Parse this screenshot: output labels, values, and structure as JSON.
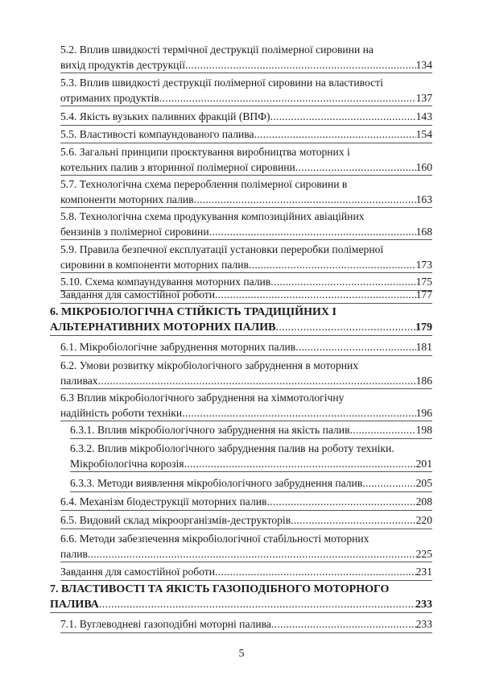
{
  "toc": [
    {
      "level": 2,
      "lines": [
        "5.2. Вплив швидкості термічної деструкції полімерної сировини на",
        "вихід продуктів деструкції"
      ],
      "page": "134"
    },
    {
      "level": 2,
      "lines": [
        "5.3. Вплив швидкості деструкції полімерної сировини на властивості",
        "отриманих продуктів"
      ],
      "page": "137"
    },
    {
      "level": 2,
      "lines": [
        "5.4. Якість вузьких паливних фракцій (ВПФ)"
      ],
      "page": "143"
    },
    {
      "level": 2,
      "lines": [
        "5.5. Властивості компаундованого палива"
      ],
      "page": "154"
    },
    {
      "level": 2,
      "lines": [
        "5.6. Загальні принципи проєктування виробництва моторних і",
        "котельних палив з вторинної полімерної сировини"
      ],
      "page": "160"
    },
    {
      "level": 2,
      "lines": [
        "5.7. Технологічна схема перероблення полімерної сировини в",
        "компоненти моторних палив"
      ],
      "page": "163"
    },
    {
      "level": 2,
      "lines": [
        "5.8. Технологічна схема продукування композиційних авіаційних",
        "бензинів з полімерної сировини"
      ],
      "page": "168"
    },
    {
      "level": 2,
      "lines": [
        "5.9. Правила безпечної експлуатації установки переробки полімерної",
        "сировини в компоненти моторних палив"
      ],
      "page": "173"
    },
    {
      "level": 2,
      "lines": [
        "5.10. Схема компаундування моторних палив"
      ],
      "page": "175"
    },
    {
      "level": 2,
      "lines": [
        "Завдання для самостійної роботи"
      ],
      "page": "177"
    },
    {
      "level": 1,
      "lines": [
        "6. МІКРОБІОЛОГІЧНА СТІЙКІСТЬ ТРАДИЦІЙНИХ І",
        "АЛЬТЕРНАТИВНИХ МОТОРНИХ ПАЛИВ"
      ],
      "page": "179"
    },
    {
      "level": 2,
      "lines": [
        "6.1. Мікробіологічне забруднення моторних палив"
      ],
      "page": "181"
    },
    {
      "level": 2,
      "lines": [
        "6.2. Умови розвитку мікробіологічного забруднення в моторних",
        "паливах"
      ],
      "page": "186"
    },
    {
      "level": 2,
      "lines": [
        "6.3 Вплив мікробіологічного забруднення на хіммотологічну",
        "надійність роботи техніки"
      ],
      "page": "196"
    },
    {
      "level": 3,
      "lines": [
        "6.3.1. Вплив мікробіологічного забруднення на якість палив"
      ],
      "page": "198"
    },
    {
      "level": 3,
      "lines": [
        "6.3.2. Вплив мікробіологічного забруднення палив на роботу техніки.",
        "Мікробіологічна корозія"
      ],
      "page": "201"
    },
    {
      "level": 3,
      "lines": [
        "6.3.3. Методи виявлення мікробіологічного забруднення палив"
      ],
      "page": "205"
    },
    {
      "level": 2,
      "lines": [
        "6.4. Механізм біодеструкції моторних палив"
      ],
      "page": "208"
    },
    {
      "level": 2,
      "lines": [
        "6.5. Видовий склад мікроорганізмів-деструкторів"
      ],
      "page": "220"
    },
    {
      "level": 2,
      "lines": [
        "6.6. Методи забезпечення мікробіологічної стабільності моторних",
        "палив"
      ],
      "page": "225"
    },
    {
      "level": 2,
      "lines": [
        "Завдання для самостійної роботи"
      ],
      "page": "231"
    },
    {
      "level": 1,
      "lines": [
        "7. ВЛАСТИВОСТІ ТА ЯКІСТЬ ГАЗОПОДІБНОГО МОТОРНОГО",
        "ПАЛИВА"
      ],
      "page": "233"
    },
    {
      "level": 2,
      "lines": [
        "7.1. Вуглеводневі газоподібні моторні палива"
      ],
      "page": "233"
    }
  ],
  "page_number": "5"
}
